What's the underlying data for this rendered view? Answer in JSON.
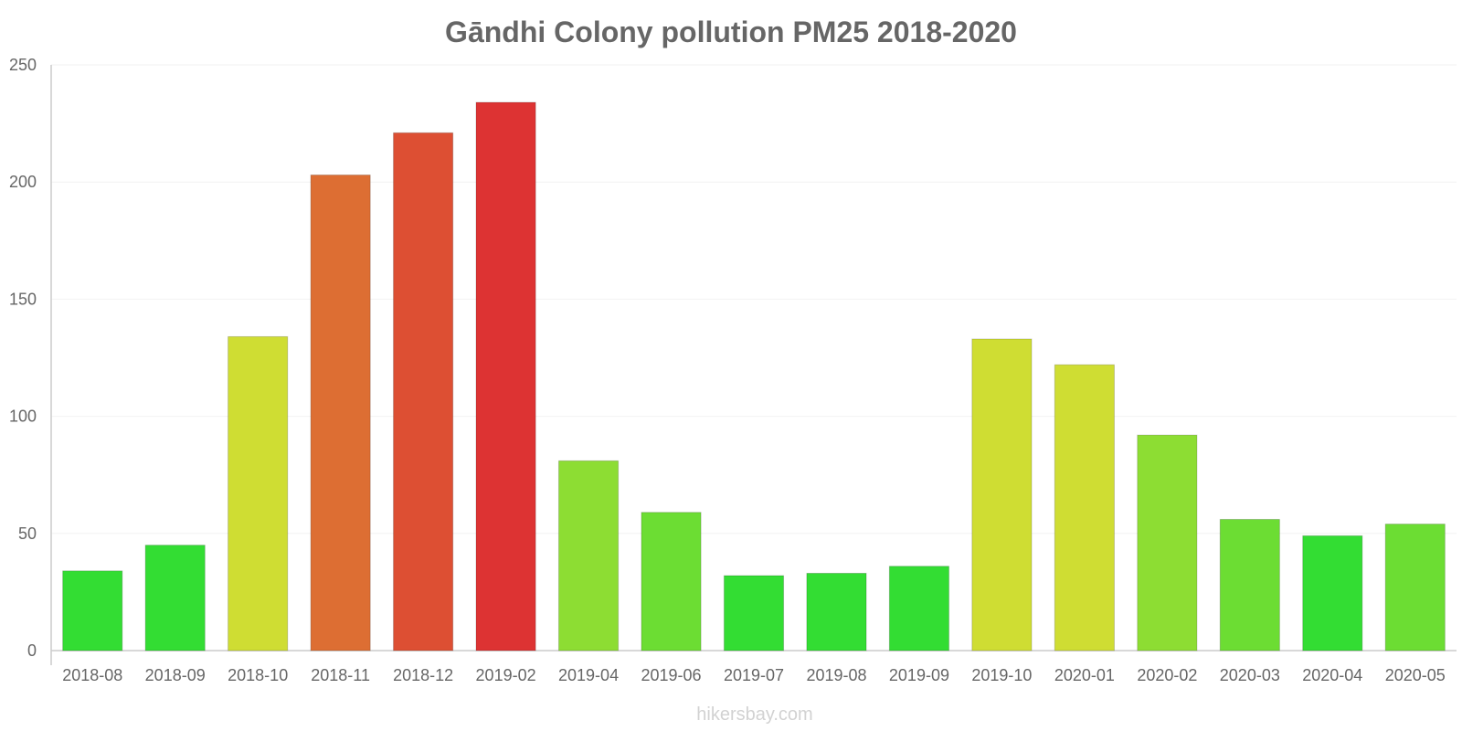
{
  "chart_data": {
    "type": "bar",
    "title": "Gāndhi Colony pollution PM25 2018-2020",
    "xlabel": "",
    "ylabel": "",
    "ylim": [
      0,
      250
    ],
    "yticks": [
      0,
      50,
      100,
      150,
      200,
      250
    ],
    "categories": [
      "2018-08",
      "2018-09",
      "2018-10",
      "2018-11",
      "2018-12",
      "2019-02",
      "2019-04",
      "2019-06",
      "2019-07",
      "2019-08",
      "2019-09",
      "2019-10",
      "2020-01",
      "2020-02",
      "2020-03",
      "2020-04",
      "2020-05"
    ],
    "values": [
      34,
      45,
      134,
      203,
      221,
      234,
      81,
      59,
      32,
      33,
      36,
      133,
      122,
      92,
      56,
      49,
      54
    ],
    "colors": [
      "#33dd33",
      "#33dd33",
      "#cfdd33",
      "#dd6e33",
      "#dd4f33",
      "#dd3333",
      "#8ddd33",
      "#6cdd33",
      "#33dd33",
      "#33dd33",
      "#33dd33",
      "#cfdd33",
      "#cfdd33",
      "#8ddd33",
      "#6cdd33",
      "#33dd33",
      "#6cdd33"
    ],
    "grid": true,
    "legend": "none"
  },
  "watermark": "hikersbay.com",
  "style": {
    "text_color": "#666666",
    "axis_color": "#cccccc",
    "grid_color": "#f2f2f2",
    "watermark_color": "#d2d2d2"
  }
}
